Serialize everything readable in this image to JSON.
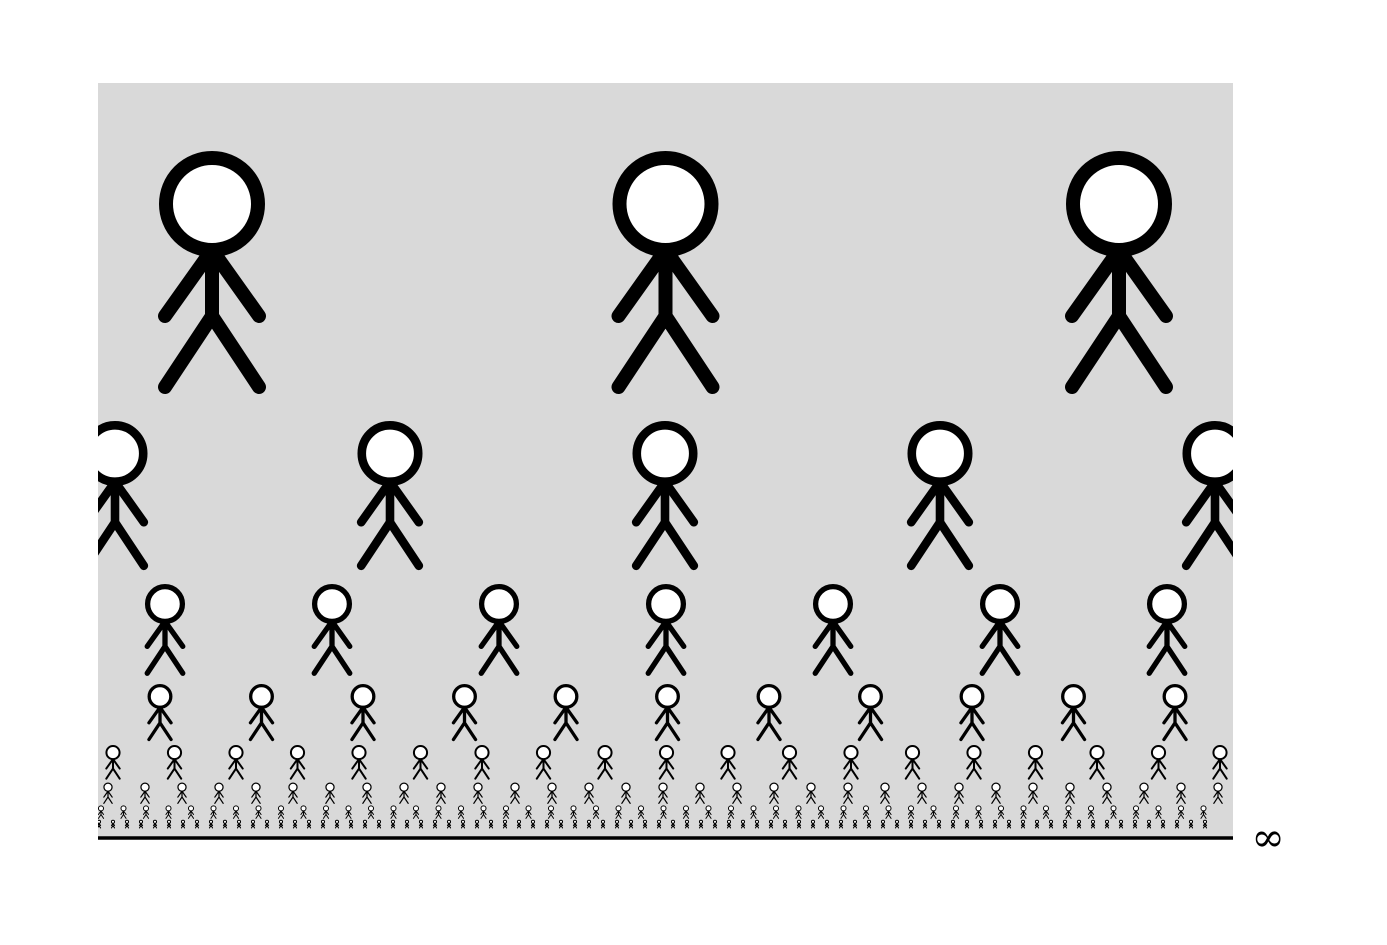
{
  "figure": {
    "panel_color": "#d9d9d9",
    "figure_color": "#000000",
    "head_fill": "#ffffff",
    "baseline_color": "#000000",
    "rows": [
      {
        "count": 3,
        "offset": "centered"
      },
      {
        "count": 5,
        "offset": "edge"
      },
      {
        "count": 7,
        "offset": "centered"
      },
      {
        "count": 11,
        "offset": "centered"
      },
      {
        "count": 19,
        "offset": "centered"
      },
      {
        "count": 31,
        "offset": "centered"
      },
      {
        "count": 50,
        "offset": "centered"
      },
      {
        "count": 80,
        "offset": "centered"
      }
    ],
    "axis_end_label": "∞"
  }
}
